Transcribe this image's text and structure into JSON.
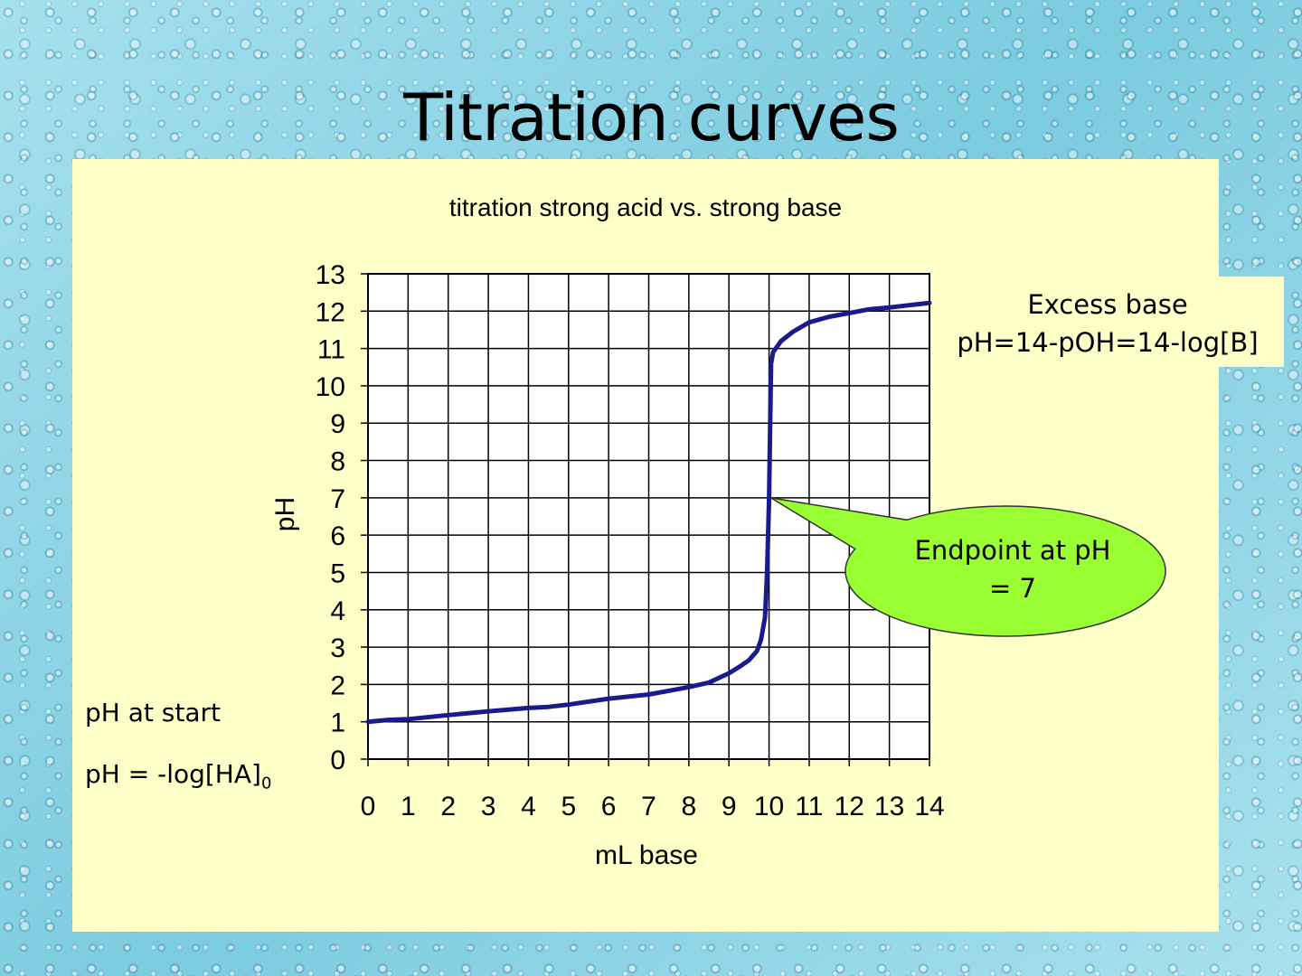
{
  "slide": {
    "title": "Titration curves"
  },
  "annotations": {
    "excess_base_line1": "Excess base",
    "excess_base_line2": "pH=14-pOH=14-log[B]",
    "start_label": "pH at start",
    "start_formula_main": "pH = -log[HA]",
    "start_formula_sub": "0",
    "endpoint_line1": "Endpoint at pH",
    "endpoint_line2": "= 7"
  },
  "colors": {
    "curve": "#1a1a8c",
    "panel": "#ffffc8",
    "callout_fill": "#99ff33"
  },
  "chart_data": {
    "type": "line",
    "title": "titration strong acid vs. strong base",
    "xlabel": "mL base",
    "ylabel": "pH",
    "xlim": [
      0,
      14
    ],
    "ylim": [
      0,
      13
    ],
    "xticks": [
      0,
      1,
      2,
      3,
      4,
      5,
      6,
      7,
      8,
      9,
      10,
      11,
      12,
      13,
      14
    ],
    "yticks": [
      0,
      1,
      2,
      3,
      4,
      5,
      6,
      7,
      8,
      9,
      10,
      11,
      12,
      13
    ],
    "grid": true,
    "series": [
      {
        "x": [
          0,
          0.5,
          1,
          2,
          3,
          4,
          4.5,
          5,
          6,
          7,
          8,
          8.5,
          9,
          9.3,
          9.5,
          9.7,
          9.8,
          9.9,
          9.95,
          10,
          10.05,
          10.1,
          10.3,
          10.6,
          11,
          11.5,
          12,
          12.5,
          13,
          13.5,
          14
        ],
        "y": [
          1.0,
          1.05,
          1.07,
          1.18,
          1.28,
          1.37,
          1.4,
          1.46,
          1.62,
          1.73,
          1.93,
          2.05,
          2.3,
          2.5,
          2.65,
          2.9,
          3.2,
          3.8,
          5.0,
          7.0,
          10.6,
          10.9,
          11.2,
          11.45,
          11.7,
          11.85,
          11.95,
          12.05,
          12.1,
          12.16,
          12.22
        ]
      }
    ],
    "callout_point": [
      10,
      7
    ]
  }
}
